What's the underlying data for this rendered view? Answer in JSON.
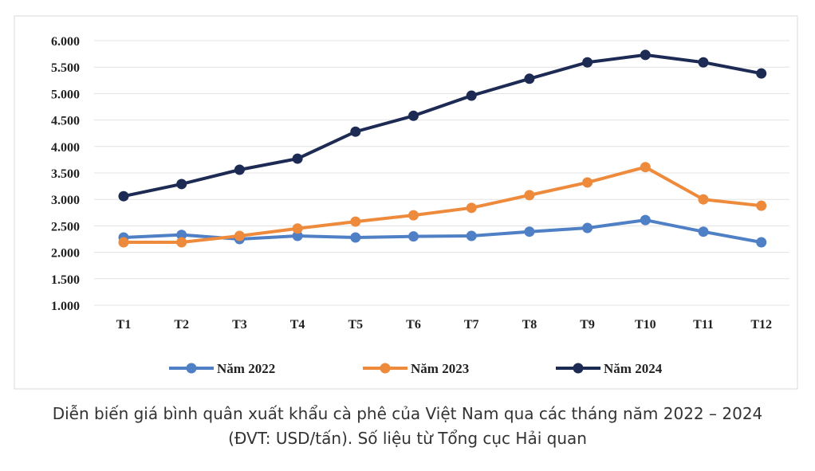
{
  "chart_data": {
    "type": "line",
    "categories": [
      "T1",
      "T2",
      "T3",
      "T4",
      "T5",
      "T6",
      "T7",
      "T8",
      "T9",
      "T10",
      "T11",
      "T12"
    ],
    "ylim": [
      1000,
      6000
    ],
    "yticks": [
      "1.000",
      "1.500",
      "2.000",
      "2.500",
      "3.000",
      "3.500",
      "4.000",
      "4.500",
      "5.000",
      "5.500",
      "6.000"
    ],
    "ytick_values": [
      1000,
      1500,
      2000,
      2500,
      3000,
      3500,
      4000,
      4500,
      5000,
      5500,
      6000
    ],
    "grid": true,
    "legend": "bottom",
    "series": [
      {
        "name": "Năm 2022",
        "color": "#4f7fc4",
        "values": [
          2280,
          2330,
          2250,
          2310,
          2280,
          2300,
          2310,
          2390,
          2460,
          2610,
          2390,
          2190
        ]
      },
      {
        "name": "Năm 2023",
        "color": "#ee8a3c",
        "values": [
          2190,
          2190,
          2310,
          2450,
          2580,
          2700,
          2840,
          3080,
          3320,
          3610,
          3000,
          2880
        ]
      },
      {
        "name": "Năm 2024",
        "color": "#1c2a54",
        "values": [
          3060,
          3290,
          3560,
          3770,
          4280,
          4580,
          4960,
          5280,
          5590,
          5730,
          5590,
          5380
        ]
      }
    ]
  },
  "caption": {
    "line1": "Diễn biến giá bình quân xuất khẩu cà phê của Việt Nam qua các tháng năm 2022 – 2024",
    "line2": "(ĐVT: USD/tấn). Số liệu từ Tổng cục Hải quan"
  }
}
